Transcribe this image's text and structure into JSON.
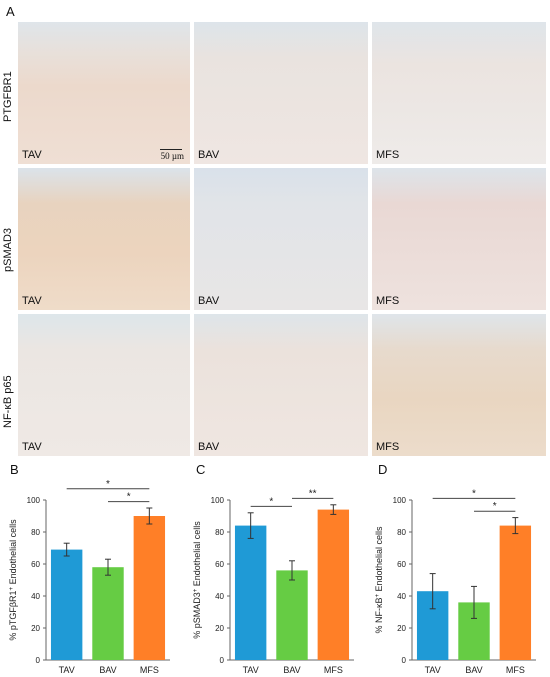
{
  "panel_letters": {
    "a": "A",
    "b": "B",
    "c": "C",
    "d": "D"
  },
  "row_labels": [
    "PTGFBR1",
    "pSMAD3",
    "NF-κB p65"
  ],
  "tile_labels": [
    "TAV",
    "BAV",
    "MFS"
  ],
  "scale_label": "50 µm",
  "colors": {
    "TAV": "#1f9ad6",
    "BAV": "#66cc44",
    "MFS": "#ff7f27"
  },
  "chart_data": [
    {
      "type": "bar",
      "categories": [
        "TAV",
        "BAV",
        "MFS"
      ],
      "values": [
        69,
        58,
        90
      ],
      "errors": [
        4,
        5,
        5
      ],
      "ylabel_prefix": "% pTGFβR1",
      "ylabel_sup": "+",
      "ylabel_suffix": " Endothelial cells",
      "ylim": [
        0,
        100
      ],
      "yticks": [
        0,
        20,
        40,
        60,
        80,
        100
      ],
      "significance": [
        {
          "from": 0,
          "to": 2,
          "label": "*"
        },
        {
          "from": 1,
          "to": 2,
          "label": "*"
        }
      ]
    },
    {
      "type": "bar",
      "categories": [
        "TAV",
        "BAV",
        "MFS"
      ],
      "values": [
        84,
        56,
        94
      ],
      "errors": [
        8,
        6,
        3
      ],
      "ylabel_prefix": "% pSMAD3",
      "ylabel_sup": "+",
      "ylabel_suffix": " Endothelial cells",
      "ylim": [
        0,
        100
      ],
      "yticks": [
        0,
        20,
        40,
        60,
        80,
        100
      ],
      "significance": [
        {
          "from": 0,
          "to": 1,
          "label": "*"
        },
        {
          "from": 1,
          "to": 2,
          "label": "**"
        }
      ]
    },
    {
      "type": "bar",
      "categories": [
        "TAV",
        "BAV",
        "MFS"
      ],
      "values": [
        43,
        36,
        84
      ],
      "errors": [
        11,
        10,
        5
      ],
      "ylabel_prefix": "% NF-κB",
      "ylabel_sup": "+",
      "ylabel_suffix": " Endothelial cells",
      "ylim": [
        0,
        100
      ],
      "yticks": [
        0,
        20,
        40,
        60,
        80,
        100
      ],
      "significance": [
        {
          "from": 0,
          "to": 2,
          "label": "*"
        },
        {
          "from": 1,
          "to": 2,
          "label": "*"
        }
      ]
    }
  ]
}
